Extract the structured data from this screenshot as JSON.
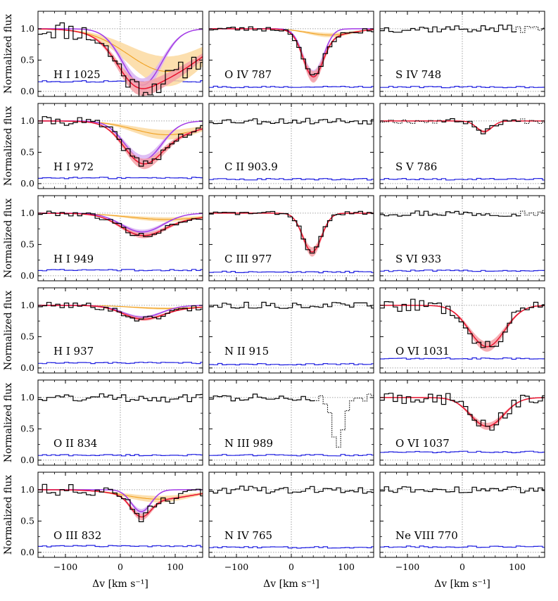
{
  "chart_data": {
    "type": "line",
    "layout": "6 rows x 3 columns of absorption-line panels",
    "ylabel": "Normalized flux",
    "xlabel": "Δv [km s⁻¹]",
    "xlim": [
      -150,
      150
    ],
    "ylim": [
      -0.08,
      1.28
    ],
    "xticks": [
      -100,
      0,
      100
    ],
    "yticks": [
      0.0,
      0.5,
      1.0
    ],
    "xtick_labels": [
      "−100",
      "0",
      "100"
    ],
    "ytick_labels": [
      "0.0",
      "0.5",
      "1.0"
    ],
    "colors": {
      "data": "#000000",
      "error": "#1f1fe0",
      "total_model": "#e8132e",
      "total_band": "#f4a0a6",
      "comp_broad": "#f0a020",
      "comp_broad_band": "#fbd9a0",
      "comp_narrow": "#a23ae6",
      "comp_narrow_band": "#d9b4f3",
      "guide": "#888888"
    },
    "panels": [
      {
        "label": "H I 1025",
        "row": 0,
        "col": 0,
        "depth": 0.9,
        "center": 40,
        "width": 35,
        "broad_depth": 0.68,
        "broad_center": 85,
        "broad_width": 70,
        "noise": 0.16,
        "seed": 11,
        "error_level": 0.16,
        "has_model": true,
        "has_components": true,
        "model_range": [
          -150,
          150
        ]
      },
      {
        "label": "O IV 787",
        "row": 0,
        "col": 1,
        "depth": 0.75,
        "center": 40,
        "width": 18,
        "broad_depth": 0.1,
        "broad_center": 70,
        "broad_width": 40,
        "noise": 0.04,
        "seed": 23,
        "error_level": 0.07,
        "has_model": true,
        "has_components": true,
        "model_range": [
          -150,
          150
        ]
      },
      {
        "label": "S IV 748",
        "row": 0,
        "col": 2,
        "noise": 0.06,
        "seed": 37,
        "error_level": 0.07,
        "has_model": false,
        "dotted_from": 100
      },
      {
        "label": "H I 972",
        "row": 1,
        "col": 0,
        "depth": 0.62,
        "center": 42,
        "width": 33,
        "broad_depth": 0.22,
        "broad_center": 85,
        "broad_width": 60,
        "noise": 0.07,
        "seed": 41,
        "error_level": 0.09,
        "has_model": true,
        "has_components": true,
        "model_range": [
          -150,
          150
        ]
      },
      {
        "label": "C II 903.9",
        "row": 1,
        "col": 1,
        "noise": 0.05,
        "seed": 53,
        "error_level": 0.07,
        "has_model": false
      },
      {
        "label": "S V 786",
        "row": 1,
        "col": 2,
        "depth": 0.17,
        "center": 40,
        "width": 14,
        "noise": 0.04,
        "seed": 67,
        "error_level": 0.07,
        "has_model": true,
        "has_components": false,
        "model_range": [
          -150,
          150
        ],
        "dotted_to": -40,
        "dotted_from": 110
      },
      {
        "label": "H I 949",
        "row": 2,
        "col": 0,
        "depth": 0.3,
        "center": 40,
        "width": 38,
        "broad_depth": 0.1,
        "broad_center": 85,
        "broad_width": 70,
        "noise": 0.04,
        "seed": 79,
        "error_level": 0.09,
        "has_model": true,
        "has_components": true,
        "model_range": [
          -150,
          150
        ]
      },
      {
        "label": "C III 977",
        "row": 2,
        "col": 1,
        "depth": 0.62,
        "center": 38,
        "width": 17,
        "noise": 0.03,
        "seed": 83,
        "error_level": 0.06,
        "has_model": true,
        "has_components": false,
        "model_range": [
          -150,
          150
        ]
      },
      {
        "label": "S VI 933",
        "row": 2,
        "col": 2,
        "noise": 0.05,
        "seed": 97,
        "error_level": 0.08,
        "has_model": false,
        "dotted_from": 110
      },
      {
        "label": "H I 937",
        "row": 3,
        "col": 0,
        "depth": 0.19,
        "center": 40,
        "width": 35,
        "broad_depth": 0.05,
        "broad_center": 85,
        "broad_width": 60,
        "noise": 0.05,
        "seed": 101,
        "error_level": 0.08,
        "has_model": true,
        "has_components": true,
        "model_range": [
          -150,
          150
        ]
      },
      {
        "label": "N II 915",
        "row": 3,
        "col": 1,
        "noise": 0.05,
        "seed": 113,
        "error_level": 0.06,
        "has_model": false
      },
      {
        "label": "O VI 1031",
        "row": 3,
        "col": 2,
        "depth": 0.66,
        "center": 45,
        "width": 32,
        "noise": 0.1,
        "seed": 127,
        "error_level": 0.15,
        "has_model": true,
        "has_components": false,
        "model_range": [
          -150,
          150
        ]
      },
      {
        "label": "O II 834",
        "row": 4,
        "col": 0,
        "noise": 0.07,
        "seed": 131,
        "error_level": 0.08,
        "has_model": false
      },
      {
        "label": "N III 989",
        "row": 4,
        "col": 1,
        "noise": 0.06,
        "seed": 137,
        "error_level": 0.08,
        "has_model": false,
        "dotted_from": 40,
        "dotted_feature": {
          "center": 85,
          "depth": 0.8,
          "width": 10
        }
      },
      {
        "label": "O VI 1037",
        "row": 4,
        "col": 2,
        "depth": 0.46,
        "center": 45,
        "width": 30,
        "noise": 0.1,
        "seed": 149,
        "error_level": 0.13,
        "has_model": true,
        "has_components": false,
        "model_range": [
          -150,
          150
        ]
      },
      {
        "label": "O III 832",
        "row": 5,
        "col": 0,
        "depth": 0.35,
        "center": 38,
        "width": 18,
        "broad_depth": 0.15,
        "broad_center": 70,
        "broad_width": 60,
        "noise": 0.09,
        "seed": 151,
        "error_level": 0.1,
        "has_model": true,
        "has_components": true,
        "model_range": [
          -150,
          150
        ]
      },
      {
        "label": "N IV 765",
        "row": 5,
        "col": 1,
        "noise": 0.06,
        "seed": 163,
        "error_level": 0.08,
        "has_model": false
      },
      {
        "label": "Ne VIII 770",
        "row": 5,
        "col": 2,
        "noise": 0.05,
        "seed": 173,
        "error_level": 0.09,
        "has_model": false
      }
    ]
  }
}
